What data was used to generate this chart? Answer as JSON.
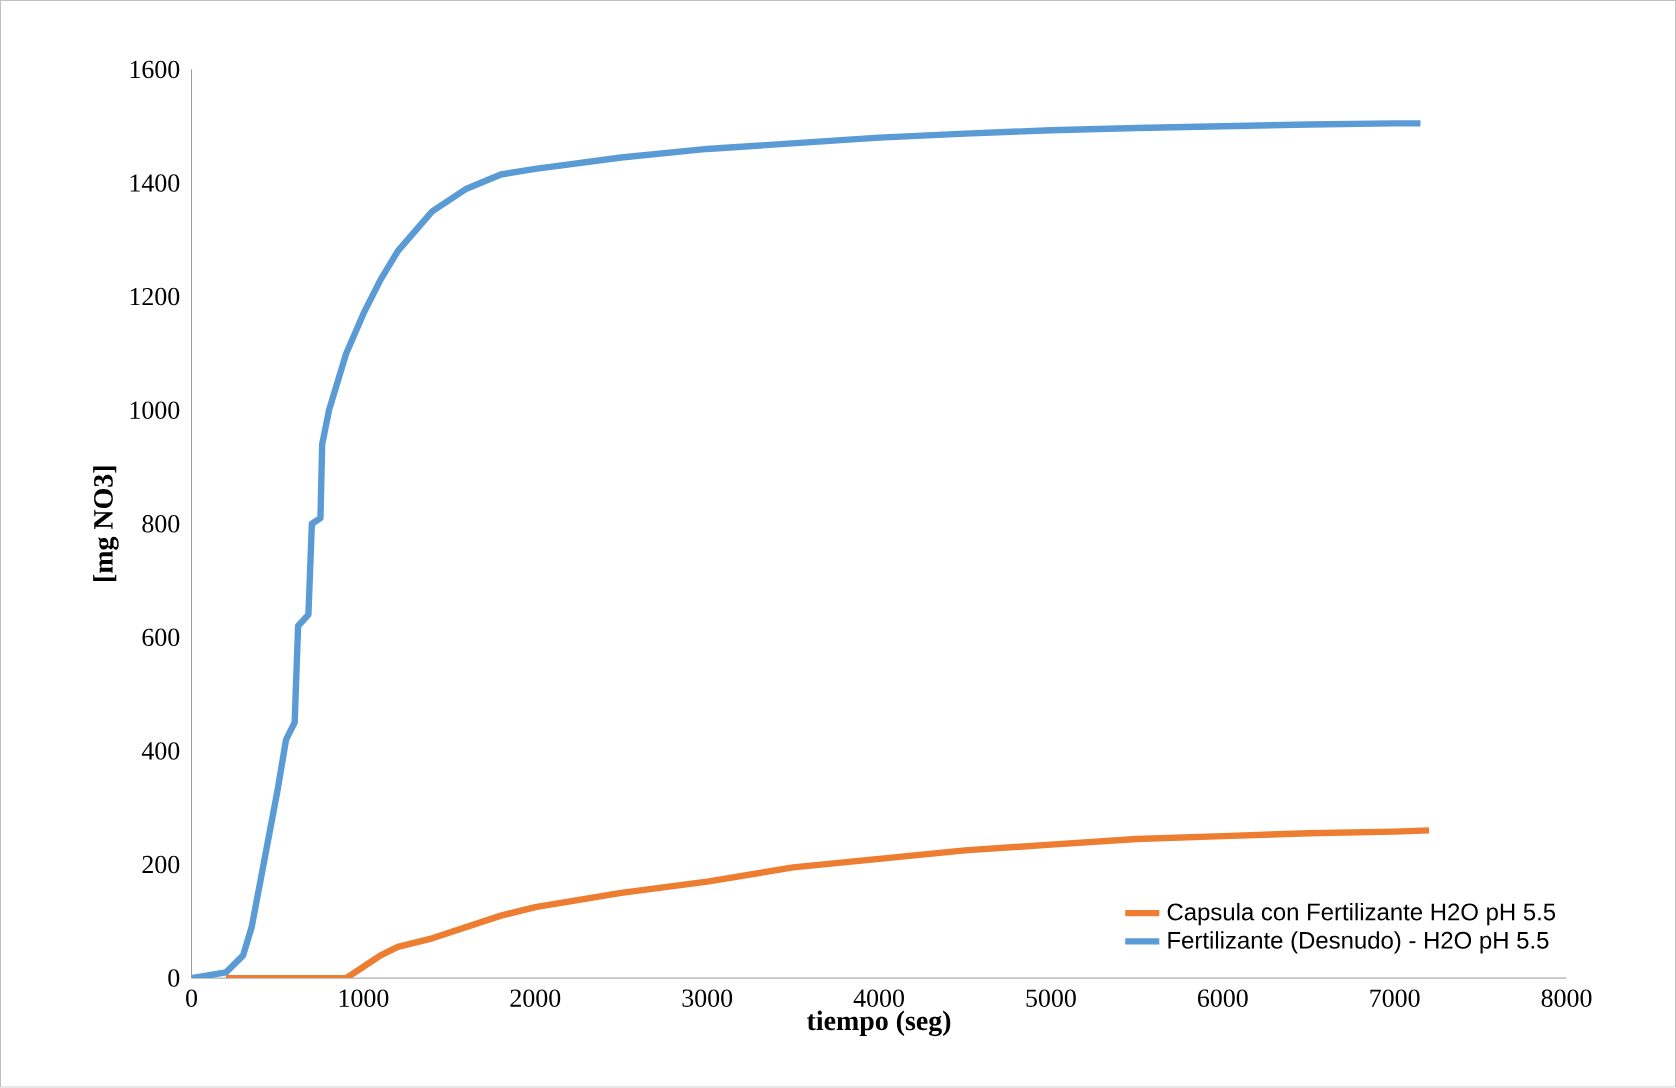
{
  "chart_data": {
    "type": "line",
    "xlabel": "tiempo (seg)",
    "ylabel": "[mg NO3]",
    "xlim": [
      0,
      8000
    ],
    "ylim": [
      0,
      1600
    ],
    "xticks": [
      0,
      1000,
      2000,
      3000,
      4000,
      5000,
      6000,
      7000,
      8000
    ],
    "yticks": [
      0,
      200,
      400,
      600,
      800,
      1000,
      1200,
      1400,
      1600
    ],
    "grid": false,
    "legend": "bottom right",
    "marker": "none",
    "line_style": "solid",
    "series": [
      {
        "name": "Capsula con Fertilizante H2O pH 5.5",
        "color": "#ed7d31",
        "x": [
          200,
          900,
          1000,
          1100,
          1200,
          1400,
          1600,
          1800,
          2000,
          2500,
          3000,
          3500,
          4000,
          4500,
          5000,
          5500,
          6000,
          6500,
          7000,
          7200
        ],
        "values": [
          0,
          0,
          20,
          40,
          55,
          70,
          90,
          110,
          125,
          150,
          170,
          195,
          210,
          225,
          235,
          245,
          250,
          255,
          258,
          260
        ]
      },
      {
        "name": "Fertilizante (Desnudo) - H2O pH 5.5",
        "color": "#5b9bd5",
        "x": [
          0,
          200,
          300,
          350,
          400,
          450,
          500,
          550,
          600,
          620,
          680,
          700,
          750,
          760,
          800,
          900,
          1000,
          1100,
          1200,
          1400,
          1600,
          1800,
          2000,
          2500,
          3000,
          3500,
          4000,
          4500,
          5000,
          5500,
          6000,
          6500,
          7000,
          7150
        ],
        "values": [
          0,
          10,
          40,
          90,
          170,
          250,
          330,
          420,
          450,
          620,
          640,
          800,
          810,
          940,
          1000,
          1100,
          1170,
          1230,
          1280,
          1350,
          1390,
          1415,
          1425,
          1445,
          1460,
          1470,
          1480,
          1487,
          1493,
          1497,
          1500,
          1503,
          1505,
          1505
        ]
      }
    ]
  }
}
